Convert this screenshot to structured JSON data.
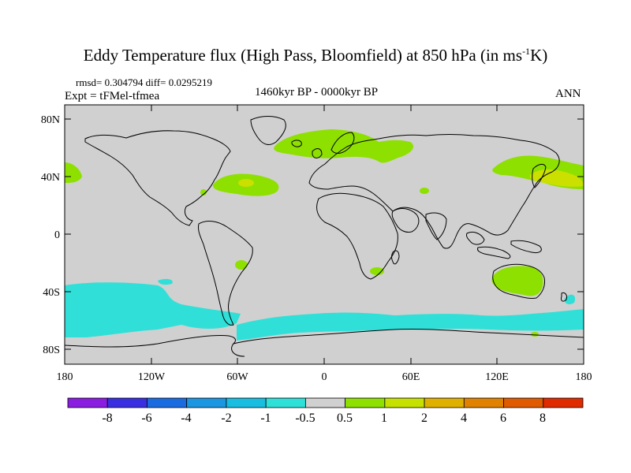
{
  "header": {
    "title_main": "Eddy Temperature flux (High Pass, Bloomfield) at 850 hPa (in ms",
    "title_sup": "-1",
    "title_end": "K)",
    "stats": "rmsd= 0.304794 diff= 0.0295219",
    "experiment": "Expt = tFMel-tfmea",
    "period": "1460kyr BP - 0000kyr BP",
    "season": "ANN"
  },
  "map": {
    "lat_labels": [
      "80N",
      "40N",
      "0",
      "40S",
      "80S"
    ],
    "lon_labels": [
      "180",
      "120W",
      "60W",
      "0",
      "60E",
      "120E",
      "180"
    ],
    "background_color": "#d0d0d0",
    "regions": [
      {
        "name": "north-atlantic-band",
        "category": "0.5–1",
        "color": "#8ee000"
      },
      {
        "name": "west-atlantic",
        "category": "0.5–1",
        "color": "#8ee000"
      },
      {
        "name": "west-atlantic-core",
        "category": "1–2",
        "color": "#cce000"
      },
      {
        "name": "north-pacific",
        "category": "0.5–1",
        "color": "#8ee000"
      },
      {
        "name": "north-pacific-core",
        "category": "1–2",
        "color": "#cce000"
      },
      {
        "name": "australia",
        "category": "0.5–1",
        "color": "#8ee000"
      },
      {
        "name": "southern-ocean-band",
        "category": "-1–-0.5",
        "color": "#30e0d8"
      }
    ]
  },
  "colorbar": {
    "labels": [
      "-8",
      "-6",
      "-4",
      "-2",
      "-1",
      "-0.5",
      "0.5",
      "1",
      "2",
      "4",
      "6",
      "8"
    ],
    "colors": [
      "#8a1de0",
      "#3a2fe0",
      "#1b6be0",
      "#1b96e0",
      "#18bde0",
      "#2ee0d8",
      "#d0d0d0",
      "#8ee000",
      "#c6e000",
      "#e0b000",
      "#e08200",
      "#e05a00",
      "#e02a00"
    ]
  }
}
